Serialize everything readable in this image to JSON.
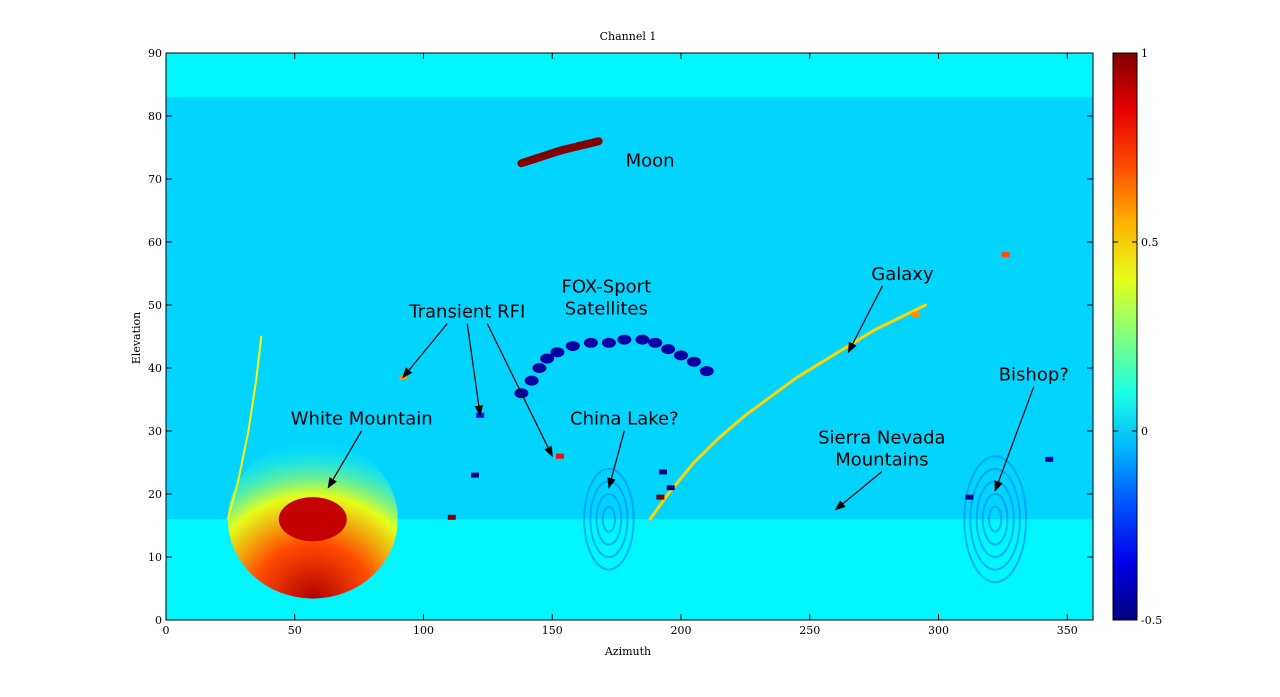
{
  "chart_data": {
    "type": "heatmap",
    "title": "Channel 1",
    "xlabel": "Azimuth",
    "ylabel": "Elevation",
    "xlim": [
      0,
      360
    ],
    "ylim": [
      0,
      90
    ],
    "xticks": [
      0,
      50,
      100,
      150,
      200,
      250,
      300,
      350
    ],
    "yticks": [
      0,
      10,
      20,
      30,
      40,
      50,
      60,
      70,
      80,
      90
    ],
    "colorbar": {
      "min": -0.5,
      "max": 1,
      "ticks": [
        1,
        0.5,
        0,
        -0.5
      ],
      "colormap": "jet"
    },
    "grid": false,
    "background_value": 0.05,
    "data_region": {
      "elevation_min": 16,
      "elevation_max": 83
    },
    "features": [
      {
        "kind": "ellipse",
        "name": "moon",
        "points": [
          [
            138,
            72.5
          ],
          [
            153,
            74.5
          ],
          [
            168,
            76
          ]
        ],
        "value": 1.0,
        "size": 0.8
      },
      {
        "kind": "ellipse",
        "name": "white-mountain",
        "x": 57,
        "y": 16,
        "rx": 22,
        "ry": 7,
        "value": 0.9
      },
      {
        "kind": "arc",
        "name": "fox-sport-satellites",
        "points": [
          [
            138,
            36
          ],
          [
            142,
            38
          ],
          [
            145,
            40
          ],
          [
            148,
            41.5
          ],
          [
            152,
            42.5
          ],
          [
            158,
            43.5
          ],
          [
            165,
            44
          ],
          [
            172,
            44
          ],
          [
            178,
            44.5
          ],
          [
            185,
            44.5
          ],
          [
            190,
            44
          ],
          [
            195,
            43
          ],
          [
            200,
            42
          ],
          [
            205,
            41
          ],
          [
            210,
            39.5
          ]
        ],
        "value": -0.45
      },
      {
        "kind": "curve",
        "name": "galaxy",
        "points": [
          [
            188,
            16
          ],
          [
            195,
            20
          ],
          [
            205,
            25
          ],
          [
            215,
            29
          ],
          [
            225,
            32.5
          ],
          [
            235,
            35.5
          ],
          [
            245,
            38.5
          ],
          [
            255,
            41
          ],
          [
            265,
            43.5
          ],
          [
            275,
            46
          ],
          [
            285,
            48
          ],
          [
            295,
            50
          ]
        ],
        "value": 0.5
      },
      {
        "kind": "rings",
        "name": "china-lake",
        "x": 172,
        "y": 16,
        "radii": [
          2,
          4,
          6,
          8
        ],
        "value": -0.1
      },
      {
        "kind": "rings",
        "name": "bishop",
        "x": 322,
        "y": 16,
        "radii": [
          2,
          4,
          6,
          8,
          10
        ],
        "value": -0.1
      },
      {
        "kind": "point",
        "name": "transient-rfi-1",
        "x": 92,
        "y": 38.5,
        "value": 0.6
      },
      {
        "kind": "point",
        "name": "transient-rfi-2",
        "x": 122,
        "y": 32.5,
        "value": -0.3
      },
      {
        "kind": "point",
        "name": "transient-rfi-3",
        "x": 153,
        "y": 26,
        "value": 0.8
      },
      {
        "kind": "point",
        "name": "bright-spot-1",
        "x": 291,
        "y": 48.5,
        "value": 0.6
      },
      {
        "kind": "point",
        "name": "bright-spot-2",
        "x": 326,
        "y": 58,
        "value": 0.7
      },
      {
        "kind": "point",
        "name": "dark-spot-1",
        "x": 120,
        "y": 23,
        "value": -0.5
      },
      {
        "kind": "point",
        "name": "dark-spot-2",
        "x": 193,
        "y": 23.5,
        "value": -0.5
      },
      {
        "kind": "point",
        "name": "dark-spot-3",
        "x": 196,
        "y": 21,
        "value": -0.5
      },
      {
        "kind": "point",
        "name": "dark-spot-4",
        "x": 312,
        "y": 19.5,
        "value": -0.5
      },
      {
        "kind": "point",
        "name": "dark-spot-5",
        "x": 343,
        "y": 25.5,
        "value": -0.45
      },
      {
        "kind": "point",
        "name": "red-spot-1",
        "x": 111,
        "y": 16.3,
        "value": 1.0
      },
      {
        "kind": "point",
        "name": "red-spot-2",
        "x": 192,
        "y": 19.5,
        "value": 1.0
      },
      {
        "kind": "streak",
        "name": "faint-left-arc",
        "points": [
          [
            24,
            16
          ],
          [
            28,
            22
          ],
          [
            32,
            30
          ],
          [
            35,
            38
          ],
          [
            37,
            45
          ]
        ],
        "value": 0.45
      }
    ],
    "annotations": [
      {
        "text": "Moon",
        "text_at": [
          188,
          72
        ]
      },
      {
        "text": "Transient RFI",
        "text_at": [
          117,
          48
        ],
        "arrows_to": [
          [
            92,
            38.5
          ],
          [
            122,
            32.5
          ],
          [
            150,
            26
          ]
        ]
      },
      {
        "text": "FOX-Sport\nSatellites",
        "text_at": [
          171,
          52
        ],
        "arrows_to": []
      },
      {
        "text": "Galaxy",
        "text_at": [
          286,
          54
        ],
        "arrows_to": [
          [
            265,
            42.5
          ]
        ]
      },
      {
        "text": "China Lake?",
        "text_at": [
          178,
          31
        ],
        "arrows_to": [
          [
            172,
            21
          ]
        ]
      },
      {
        "text": "White Mountain",
        "text_at": [
          76,
          31
        ],
        "arrows_to": [
          [
            63,
            21
          ]
        ]
      },
      {
        "text": "Sierra Nevada\nMountains",
        "text_at": [
          278,
          28
        ],
        "arrows_to": [
          [
            260,
            17.5
          ]
        ]
      },
      {
        "text": "Bishop?",
        "text_at": [
          337,
          38
        ],
        "arrows_to": [
          [
            322,
            20.5
          ]
        ]
      }
    ]
  }
}
